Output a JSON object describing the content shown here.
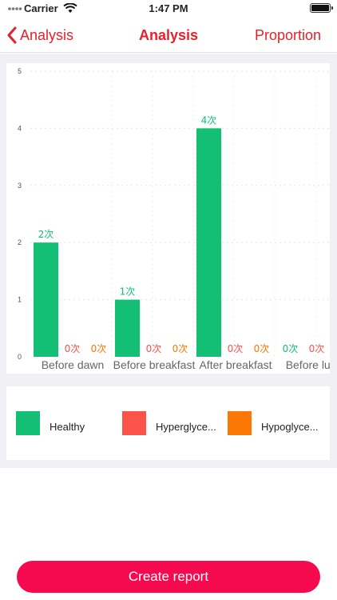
{
  "status_bar": {
    "carrier": "Carrier",
    "time": "1:47 PM"
  },
  "nav": {
    "back_label": "Analysis",
    "title": "Analysis",
    "right_label": "Proportion"
  },
  "colors": {
    "accent": "#e8202b",
    "healthy": "#13bf75",
    "hyper": "#f9534a",
    "hypo": "#fb7806",
    "button": "#f50a4f"
  },
  "chart_data": {
    "type": "bar",
    "ylim": [
      0,
      5
    ],
    "y_ticks": [
      "0",
      "1",
      "2",
      "3",
      "4",
      "5"
    ],
    "categories": [
      "Before dawn",
      "Before breakfast",
      "After breakfast",
      "Before lunch"
    ],
    "series": [
      {
        "name": "Healthy",
        "color": "#13bf75",
        "values": [
          2,
          1,
          4,
          0
        ],
        "labels": [
          "2次",
          "1次",
          "4次",
          "0次"
        ]
      },
      {
        "name": "Hyperglycemia",
        "color": "#f9534a",
        "values": [
          0,
          0,
          0,
          0
        ],
        "labels": [
          "0次",
          "0次",
          "0次",
          "0次"
        ]
      },
      {
        "name": "Hypoglycemia",
        "color": "#fb7806",
        "values": [
          0,
          0,
          0,
          0
        ],
        "labels": [
          "0次",
          "0次",
          "0次",
          ""
        ]
      }
    ],
    "legend_position": "bottom"
  },
  "legend": {
    "items": [
      {
        "label": "Healthy",
        "color": "#13bf75"
      },
      {
        "label": "Hyperglyce...",
        "color": "#f9534a"
      },
      {
        "label": "Hypoglyce...",
        "color": "#fb7806"
      }
    ]
  },
  "footer": {
    "button_label": "Create report"
  }
}
